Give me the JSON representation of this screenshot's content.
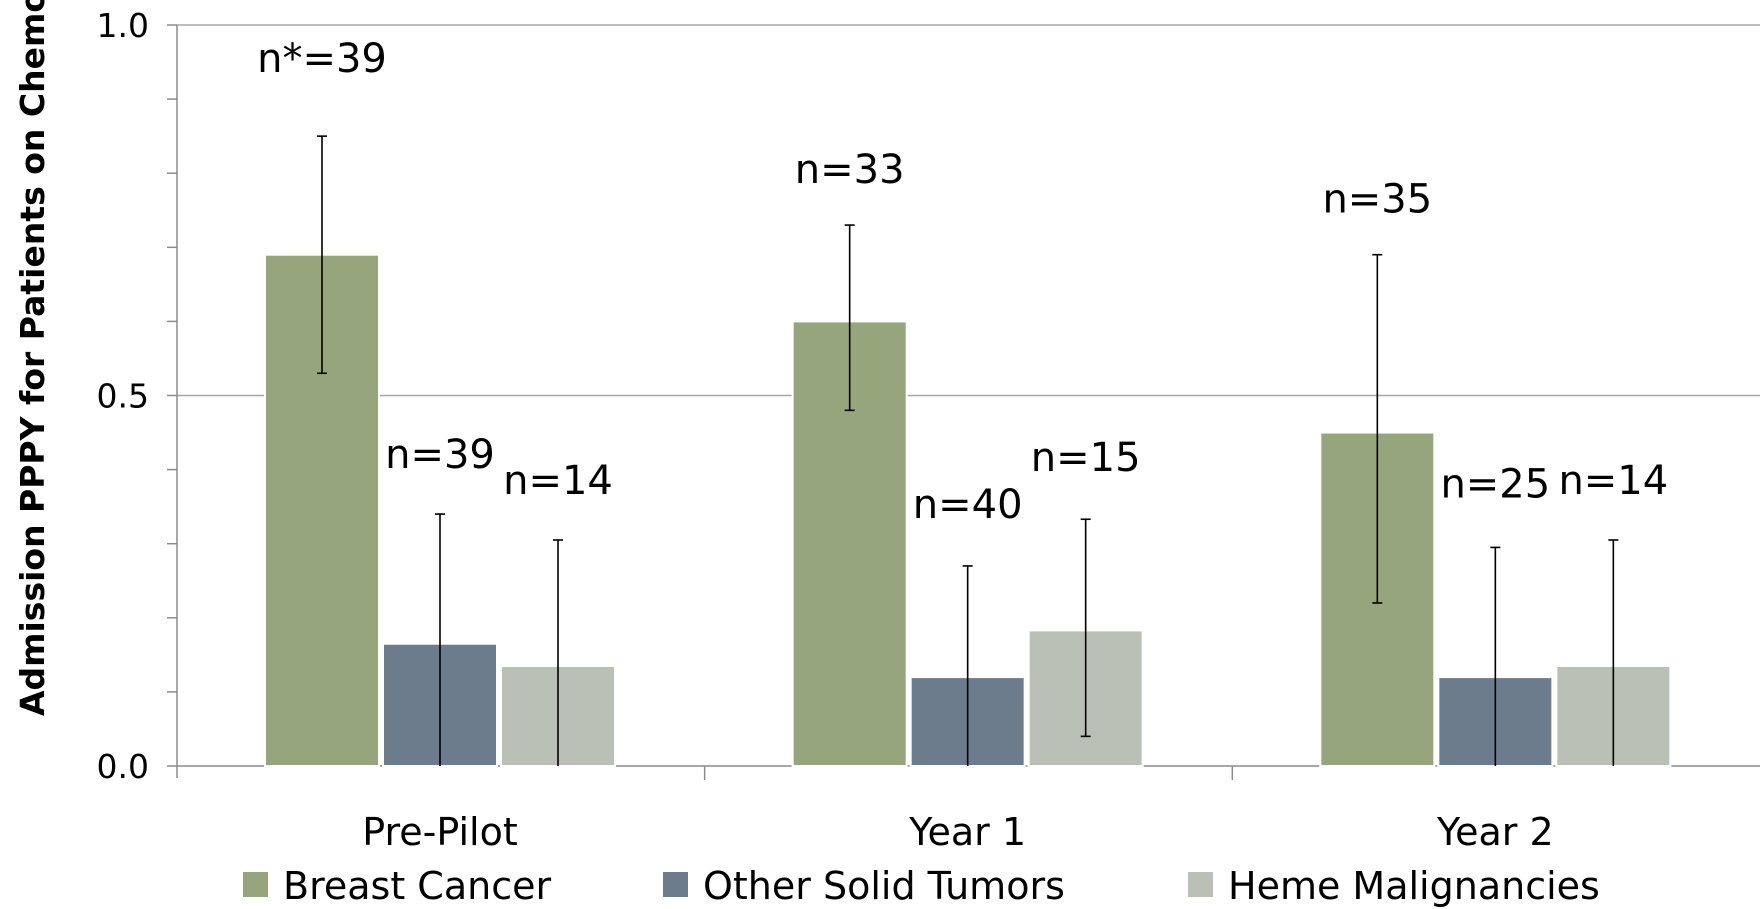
{
  "chart_data": {
    "type": "bar",
    "title": "",
    "xlabel": "",
    "ylabel": "Admission PPPY for Patients on Chemo",
    "ylim": [
      0,
      1.0
    ],
    "yticks": [
      "0.0",
      "0.5",
      "1.0"
    ],
    "grid": true,
    "legend_position": "bottom",
    "categories": [
      "Pre-Pilot",
      "Year 1",
      "Year 2"
    ],
    "series": [
      {
        "name": "Breast Cancer",
        "color": "#97a57d",
        "values": [
          0.69,
          0.6,
          0.45
        ],
        "err_low": [
          0.53,
          0.48,
          0.22
        ],
        "err_high": [
          0.85,
          0.73,
          0.69
        ],
        "n_labels": [
          "n*=39",
          "n=33",
          "n=35"
        ]
      },
      {
        "name": "Other Solid Tumors",
        "color": "#6c7c8c",
        "values": [
          0.165,
          0.12,
          0.12
        ],
        "err_low": [
          0.0,
          0.0,
          0.0
        ],
        "err_high": [
          0.34,
          0.27,
          0.295
        ],
        "n_labels": [
          "n=39",
          "n=40",
          "n=25"
        ]
      },
      {
        "name": "Heme Malignancies",
        "color": "#bac0b5",
        "values": [
          0.135,
          0.183,
          0.135
        ],
        "err_low": [
          0.0,
          0.04,
          0.0
        ],
        "err_high": [
          0.305,
          0.333,
          0.305
        ],
        "n_labels": [
          "n=14",
          "n=15",
          "n=14"
        ]
      }
    ]
  }
}
